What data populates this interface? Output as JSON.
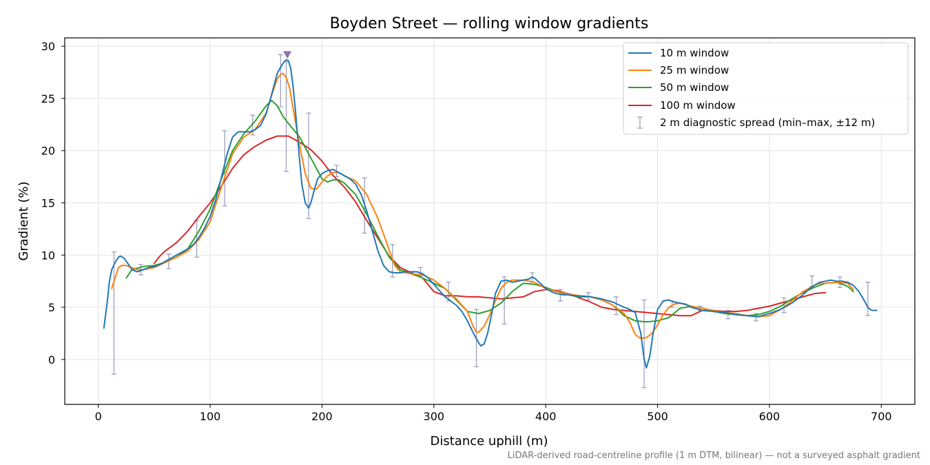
{
  "chart_data": {
    "type": "line",
    "title": "Boyden Street — rolling window gradients",
    "xlabel": "Distance uphill (m)",
    "ylabel": "Gradient (%)",
    "footnote": "LiDAR-derived road-centreline profile (1 m DTM, bilinear) — not a surveyed asphalt gradient",
    "xlim": [
      -30,
      730
    ],
    "ylim": [
      -4.3,
      30.8
    ],
    "x_ticks": [
      0,
      100,
      200,
      300,
      400,
      500,
      600,
      700
    ],
    "y_ticks": [
      0,
      5,
      10,
      15,
      20,
      25,
      30
    ],
    "grid": true,
    "legend_position": "top-right",
    "series": [
      {
        "name": "10 m window",
        "color": "#1f77b4",
        "x": [
          5,
          8,
          10,
          12,
          15,
          18,
          20,
          23,
          27,
          30,
          35,
          40,
          45,
          50,
          55,
          60,
          65,
          70,
          75,
          80,
          85,
          90,
          95,
          100,
          105,
          110,
          115,
          120,
          125,
          130,
          135,
          140,
          145,
          150,
          155,
          160,
          163,
          166,
          168,
          170,
          172,
          174,
          176,
          178,
          180,
          182,
          185,
          188,
          190,
          193,
          196,
          200,
          205,
          210,
          215,
          220,
          225,
          230,
          235,
          240,
          245,
          250,
          255,
          260,
          265,
          270,
          275,
          280,
          285,
          290,
          295,
          300,
          305,
          310,
          315,
          320,
          325,
          330,
          335,
          338,
          340,
          342,
          345,
          348,
          352,
          355,
          360,
          365,
          370,
          375,
          380,
          385,
          388,
          390,
          395,
          400,
          405,
          410,
          415,
          420,
          425,
          430,
          440,
          450,
          460,
          470,
          475,
          480,
          485,
          488,
          490,
          493,
          496,
          500,
          505,
          510,
          515,
          520,
          525,
          530,
          540,
          550,
          560,
          570,
          580,
          590,
          600,
          610,
          620,
          630,
          635,
          640,
          645,
          650,
          655,
          660,
          665,
          670,
          675,
          680,
          685,
          688,
          690,
          692,
          694,
          696
        ],
        "y": [
          3.0,
          5.5,
          7.5,
          8.6,
          9.3,
          9.8,
          9.9,
          9.7,
          9.1,
          8.6,
          8.4,
          8.6,
          8.8,
          8.9,
          9.1,
          9.4,
          9.7,
          10.0,
          10.3,
          10.6,
          11.0,
          11.7,
          12.6,
          13.7,
          15.3,
          17.4,
          19.6,
          21.3,
          21.8,
          21.8,
          21.8,
          22.0,
          22.4,
          23.5,
          25.4,
          27.4,
          28.0,
          28.5,
          28.7,
          28.6,
          27.9,
          26.3,
          24.1,
          21.6,
          19.0,
          16.8,
          15.0,
          14.5,
          15.0,
          16.2,
          17.3,
          17.8,
          18.1,
          18.2,
          17.9,
          17.6,
          17.3,
          16.8,
          15.8,
          14.2,
          12.3,
          10.4,
          9.0,
          8.4,
          8.3,
          8.3,
          8.4,
          8.4,
          8.4,
          8.2,
          7.8,
          7.2,
          6.6,
          6.0,
          5.6,
          5.2,
          4.6,
          3.7,
          2.6,
          2.0,
          1.6,
          1.3,
          1.5,
          2.5,
          4.5,
          6.3,
          7.5,
          7.6,
          7.4,
          7.5,
          7.6,
          7.7,
          7.9,
          7.8,
          7.3,
          6.8,
          6.5,
          6.3,
          6.2,
          6.2,
          6.1,
          6.1,
          6.0,
          5.8,
          5.5,
          5.0,
          4.8,
          4.5,
          2.5,
          0.0,
          -0.8,
          0.3,
          2.5,
          4.8,
          5.6,
          5.7,
          5.5,
          5.4,
          5.3,
          5.0,
          4.7,
          4.6,
          4.5,
          4.3,
          4.2,
          4.1,
          4.4,
          4.8,
          5.4,
          6.2,
          6.7,
          7.1,
          7.4,
          7.5,
          7.6,
          7.5,
          7.5,
          7.4,
          7.1,
          6.5,
          5.6,
          5.0,
          4.8,
          4.7,
          4.7,
          4.7
        ]
      },
      {
        "name": "25 m window",
        "color": "#ff7f0e",
        "x": [
          12,
          15,
          18,
          21,
          25,
          30,
          35,
          40,
          50,
          60,
          70,
          80,
          90,
          100,
          110,
          120,
          130,
          140,
          150,
          155,
          160,
          163,
          165,
          168,
          171,
          175,
          180,
          185,
          190,
          195,
          200,
          205,
          210,
          215,
          220,
          230,
          240,
          250,
          260,
          265,
          270,
          280,
          290,
          300,
          310,
          320,
          330,
          335,
          338,
          340,
          345,
          350,
          355,
          360,
          365,
          370,
          380,
          390,
          400,
          410,
          420,
          430,
          440,
          450,
          460,
          470,
          475,
          480,
          485,
          490,
          495,
          500,
          505,
          510,
          515,
          520,
          530,
          540,
          550,
          560,
          570,
          580,
          590,
          600,
          610,
          620,
          630,
          640,
          645,
          650,
          660,
          670,
          675
        ],
        "y": [
          6.8,
          7.8,
          8.8,
          9.0,
          9.0,
          8.8,
          8.6,
          8.6,
          8.8,
          9.3,
          9.8,
          10.4,
          11.5,
          13.2,
          16.5,
          19.7,
          21.3,
          22.0,
          23.6,
          25.3,
          26.9,
          27.3,
          27.4,
          27.0,
          26.0,
          23.5,
          20.5,
          17.8,
          16.4,
          16.3,
          17.0,
          17.6,
          17.9,
          17.9,
          17.6,
          17.1,
          15.8,
          13.5,
          10.5,
          9.0,
          8.4,
          8.2,
          8.1,
          7.6,
          6.8,
          5.8,
          4.6,
          3.2,
          2.6,
          2.6,
          3.2,
          4.3,
          5.6,
          6.8,
          7.4,
          7.6,
          7.6,
          7.4,
          6.8,
          6.5,
          6.3,
          6.1,
          6.0,
          5.7,
          5.2,
          4.4,
          3.6,
          2.4,
          2.0,
          2.1,
          2.5,
          3.3,
          4.3,
          5.0,
          5.3,
          5.4,
          5.1,
          4.9,
          4.7,
          4.5,
          4.4,
          4.2,
          4.1,
          4.2,
          4.8,
          5.6,
          6.5,
          7.1,
          7.3,
          7.3,
          7.4,
          7.3,
          6.7
        ]
      },
      {
        "name": "50 m window",
        "color": "#2ca02c",
        "x": [
          25,
          30,
          40,
          50,
          60,
          70,
          80,
          90,
          100,
          110,
          120,
          130,
          140,
          150,
          155,
          160,
          165,
          170,
          180,
          190,
          200,
          205,
          210,
          215,
          220,
          230,
          240,
          250,
          260,
          270,
          280,
          290,
          300,
          310,
          320,
          330,
          340,
          350,
          360,
          370,
          380,
          390,
          400,
          410,
          420,
          430,
          440,
          450,
          460,
          470,
          480,
          490,
          500,
          510,
          520,
          530,
          540,
          550,
          560,
          570,
          580,
          590,
          600,
          610,
          620,
          630,
          640,
          650,
          660,
          670,
          675
        ],
        "y": [
          7.8,
          8.6,
          8.9,
          9.0,
          9.3,
          9.8,
          10.6,
          12.3,
          14.4,
          17.3,
          20.0,
          21.6,
          22.8,
          24.3,
          24.8,
          24.3,
          23.3,
          22.6,
          21.3,
          19.3,
          17.3,
          17.0,
          17.2,
          17.2,
          16.9,
          15.8,
          13.9,
          11.8,
          9.8,
          8.6,
          8.2,
          7.8,
          7.3,
          6.8,
          5.7,
          4.6,
          4.4,
          4.7,
          5.4,
          6.5,
          7.3,
          7.2,
          6.9,
          6.5,
          6.2,
          6.0,
          6.0,
          5.7,
          5.2,
          4.2,
          3.7,
          3.6,
          3.7,
          4.0,
          4.9,
          5.1,
          4.9,
          4.6,
          4.4,
          4.3,
          4.2,
          4.3,
          4.6,
          5.1,
          5.8,
          6.4,
          6.9,
          7.3,
          7.4,
          7.0,
          6.5
        ]
      },
      {
        "name": "100 m window",
        "color": "#d62728",
        "x": [
          50,
          55,
          60,
          70,
          80,
          90,
          100,
          110,
          120,
          130,
          140,
          150,
          160,
          170,
          180,
          190,
          200,
          210,
          220,
          230,
          240,
          250,
          260,
          270,
          280,
          290,
          300,
          310,
          320,
          330,
          340,
          350,
          360,
          370,
          380,
          390,
          400,
          410,
          420,
          430,
          440,
          450,
          460,
          470,
          480,
          490,
          500,
          510,
          520,
          530,
          540,
          550,
          560,
          570,
          580,
          590,
          600,
          610,
          620,
          630,
          640,
          650
        ],
        "y": [
          9.2,
          9.9,
          10.4,
          11.2,
          12.3,
          13.7,
          15.0,
          16.6,
          18.3,
          19.6,
          20.4,
          21.0,
          21.4,
          21.4,
          20.8,
          20.1,
          19.0,
          17.6,
          16.5,
          15.1,
          13.3,
          11.6,
          9.9,
          8.8,
          8.3,
          7.8,
          6.5,
          6.1,
          6.1,
          6.0,
          6.0,
          5.9,
          5.8,
          5.9,
          6.0,
          6.5,
          6.7,
          6.6,
          6.3,
          5.9,
          5.5,
          5.0,
          4.8,
          4.7,
          4.6,
          4.5,
          4.4,
          4.3,
          4.2,
          4.2,
          4.7,
          4.7,
          4.6,
          4.6,
          4.7,
          4.9,
          5.1,
          5.4,
          5.7,
          6.0,
          6.3,
          6.4
        ]
      }
    ],
    "error_bars": {
      "name": "2 m diagnostic spread (min–max, ±12 m)",
      "color": "#9898b8",
      "points": [
        {
          "x": 14,
          "low": -1.4,
          "high": 10.3
        },
        {
          "x": 38,
          "low": 8.1,
          "high": 9.1
        },
        {
          "x": 63,
          "low": 8.7,
          "high": 10.1
        },
        {
          "x": 88,
          "low": 9.8,
          "high": 13.3
        },
        {
          "x": 113,
          "low": 14.7,
          "high": 21.9
        },
        {
          "x": 138,
          "low": 21.5,
          "high": 23.4
        },
        {
          "x": 163,
          "low": 24.2,
          "high": 29.2
        },
        {
          "x": 168,
          "low": 18.0,
          "high": 28.5
        },
        {
          "x": 188,
          "low": 13.5,
          "high": 23.6
        },
        {
          "x": 213,
          "low": 17.5,
          "high": 18.6
        },
        {
          "x": 238,
          "low": 12.1,
          "high": 17.4
        },
        {
          "x": 263,
          "low": 7.9,
          "high": 11.0
        },
        {
          "x": 288,
          "low": 8.0,
          "high": 8.8
        },
        {
          "x": 313,
          "low": 5.6,
          "high": 7.4
        },
        {
          "x": 338,
          "low": -0.7,
          "high": 4.8
        },
        {
          "x": 363,
          "low": 3.4,
          "high": 7.9
        },
        {
          "x": 388,
          "low": 7.4,
          "high": 8.3
        },
        {
          "x": 413,
          "low": 5.6,
          "high": 6.7
        },
        {
          "x": 438,
          "low": 5.7,
          "high": 6.4
        },
        {
          "x": 463,
          "low": 4.3,
          "high": 6.0
        },
        {
          "x": 488,
          "low": -2.7,
          "high": 5.7
        },
        {
          "x": 513,
          "low": 5.0,
          "high": 5.6
        },
        {
          "x": 538,
          "low": 4.7,
          "high": 5.1
        },
        {
          "x": 563,
          "low": 3.9,
          "high": 4.7
        },
        {
          "x": 588,
          "low": 3.7,
          "high": 4.4
        },
        {
          "x": 613,
          "low": 4.5,
          "high": 5.9
        },
        {
          "x": 638,
          "low": 7.0,
          "high": 8.0
        },
        {
          "x": 663,
          "low": 6.9,
          "high": 7.9
        },
        {
          "x": 688,
          "low": 4.2,
          "high": 7.4
        }
      ]
    },
    "peak_marker": {
      "x": 169,
      "y": 29.2,
      "color": "#8c76a8"
    }
  }
}
